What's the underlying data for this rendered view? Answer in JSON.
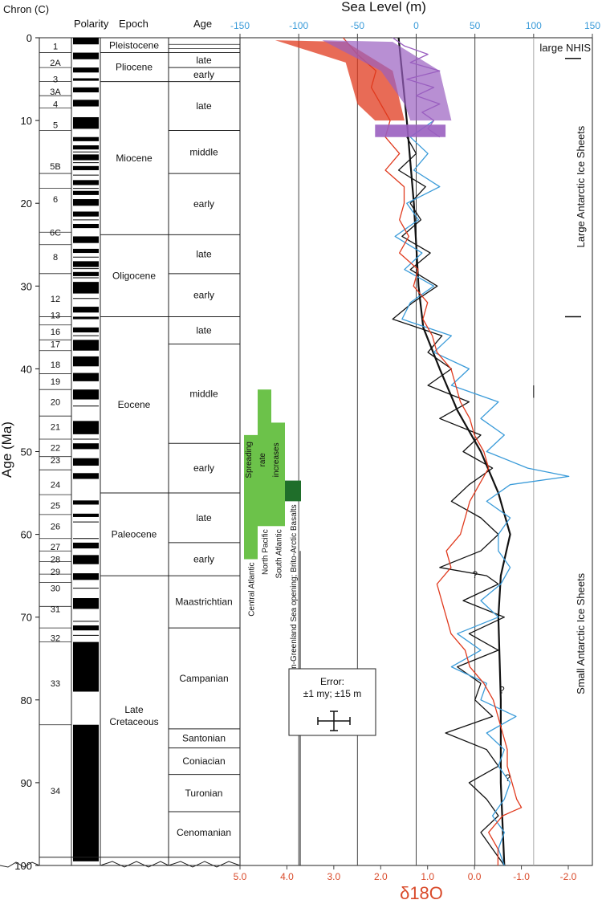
{
  "chart_data": {
    "type": "line",
    "title": "",
    "xlabel_top": "Sea Level (m)",
    "xlabel_bottom": "δ18O",
    "ylabel": "Age (Ma)",
    "y_ticks": [
      0,
      10,
      20,
      30,
      40,
      50,
      60,
      70,
      80,
      90,
      100
    ],
    "ylim": [
      0,
      100
    ],
    "sea_level_ticks": [
      -150,
      -100,
      -50,
      0,
      50,
      100,
      150
    ],
    "sea_level_lim": [
      -150,
      150
    ],
    "d18o_ticks": [
      "5.0",
      "4.0",
      "3.0",
      "2.0",
      "1.0",
      "0.0",
      "-1.0",
      "-2.0"
    ],
    "d18o_tick_values": [
      5.0,
      4.0,
      3.0,
      2.0,
      1.0,
      0.0,
      -1.0,
      -2.0
    ],
    "d18o_lim": [
      5.0,
      -2.0
    ],
    "grid": "vertical lines at -100, -50, 0, 50 and 100 m",
    "colors": {
      "sea_level_axis": "#3a9bd9",
      "d18o_axis": "#d94a2a",
      "black_curve": "#111111",
      "blue_curve": "#3a9bd9",
      "red_curve": "#e03a1e",
      "purple_curve": "#9a5fc0",
      "spreading_light": "#6cc24a",
      "spreading_dark": "#1f6e2a"
    },
    "series": [
      {
        "name": "",
        "color": "#111111",
        "axis": "sea_level",
        "style": "smoothed sea level",
        "points": [
          [
            0,
            -15
          ],
          [
            10,
            -8
          ],
          [
            20,
            -2
          ],
          [
            30,
            2
          ],
          [
            35,
            6
          ],
          [
            40,
            20
          ],
          [
            45,
            35
          ],
          [
            50,
            55
          ],
          [
            55,
            70
          ],
          [
            60,
            80
          ],
          [
            65,
            72
          ],
          [
            70,
            70
          ],
          [
            80,
            72
          ],
          [
            90,
            72
          ],
          [
            100,
            75
          ]
        ]
      },
      {
        "name": "",
        "color": "#111111",
        "axis": "sea_level",
        "style": "sea level",
        "points": [
          [
            12,
            -8
          ],
          [
            14,
            0
          ],
          [
            16,
            -15
          ],
          [
            18,
            8
          ],
          [
            20,
            -5
          ],
          [
            22,
            4
          ],
          [
            24,
            -12
          ],
          [
            26,
            12
          ],
          [
            28,
            -5
          ],
          [
            30,
            18
          ],
          [
            32,
            -3
          ],
          [
            34,
            -20
          ],
          [
            36,
            22
          ],
          [
            38,
            10
          ],
          [
            40,
            30
          ],
          [
            42,
            10
          ],
          [
            44,
            45
          ],
          [
            46,
            20
          ],
          [
            48,
            55
          ],
          [
            50,
            40
          ],
          [
            52,
            65
          ],
          [
            54,
            45
          ],
          [
            56,
            30
          ],
          [
            58,
            55
          ],
          [
            60,
            70
          ],
          [
            62,
            55
          ],
          [
            64,
            20
          ],
          [
            65,
            60
          ],
          [
            66,
            70
          ],
          [
            68,
            40
          ],
          [
            70,
            75
          ],
          [
            72,
            45
          ],
          [
            74,
            70
          ],
          [
            76,
            35
          ],
          [
            78,
            55
          ],
          [
            80,
            50
          ],
          [
            82,
            65
          ],
          [
            84,
            25
          ],
          [
            86,
            60
          ],
          [
            88,
            70
          ],
          [
            90,
            45
          ],
          [
            92,
            60
          ],
          [
            94,
            70
          ],
          [
            96,
            55
          ],
          [
            98,
            65
          ],
          [
            100,
            75
          ]
        ]
      },
      {
        "name": "",
        "color": "#3a9bd9",
        "axis": "sea_level",
        "style": "sea level",
        "points": [
          [
            10,
            15
          ],
          [
            12,
            -5
          ],
          [
            14,
            10
          ],
          [
            16,
            -2
          ],
          [
            18,
            20
          ],
          [
            20,
            -8
          ],
          [
            22,
            2
          ],
          [
            24,
            -18
          ],
          [
            26,
            5
          ],
          [
            28,
            -10
          ],
          [
            30,
            15
          ],
          [
            32,
            -5
          ],
          [
            34,
            -12
          ],
          [
            36,
            30
          ],
          [
            38,
            15
          ],
          [
            40,
            45
          ],
          [
            42,
            30
          ],
          [
            44,
            70
          ],
          [
            46,
            55
          ],
          [
            48,
            75
          ],
          [
            50,
            60
          ],
          [
            52,
            95
          ],
          [
            53,
            130
          ],
          [
            54,
            80
          ],
          [
            56,
            60
          ],
          [
            58,
            80
          ],
          [
            60,
            70
          ],
          [
            62,
            70
          ],
          [
            64,
            80
          ],
          [
            66,
            72
          ],
          [
            68,
            55
          ],
          [
            70,
            70
          ],
          [
            72,
            35
          ],
          [
            74,
            55
          ],
          [
            76,
            30
          ],
          [
            78,
            60
          ],
          [
            80,
            55
          ],
          [
            82,
            85
          ],
          [
            84,
            60
          ],
          [
            86,
            75
          ],
          [
            88,
            70
          ],
          [
            90,
            80
          ],
          [
            92,
            75
          ],
          [
            94,
            65
          ],
          [
            96,
            75
          ],
          [
            98,
            70
          ],
          [
            100,
            75
          ]
        ]
      },
      {
        "name": "",
        "color": "#e03a1e",
        "axis": "d18o",
        "style": "oxygen isotope",
        "points": [
          [
            0,
            2.8
          ],
          [
            2,
            2.5
          ],
          [
            4,
            2.1
          ],
          [
            6,
            2.2
          ],
          [
            8,
            2.0
          ],
          [
            10,
            1.8
          ],
          [
            12,
            1.9
          ],
          [
            14,
            1.6
          ],
          [
            16,
            1.9
          ],
          [
            18,
            1.5
          ],
          [
            20,
            1.5
          ],
          [
            22,
            1.6
          ],
          [
            24,
            1.4
          ],
          [
            26,
            1.6
          ],
          [
            28,
            1.2
          ],
          [
            30,
            1.3
          ],
          [
            32,
            1.0
          ],
          [
            34,
            1.1
          ],
          [
            36,
            0.9
          ],
          [
            38,
            0.8
          ],
          [
            40,
            0.5
          ],
          [
            42,
            0.4
          ],
          [
            44,
            0.3
          ],
          [
            46,
            0.1
          ],
          [
            48,
            0.0
          ],
          [
            50,
            -0.2
          ],
          [
            52,
            -0.3
          ],
          [
            54,
            -0.1
          ],
          [
            56,
            0.1
          ],
          [
            58,
            0.2
          ],
          [
            60,
            0.3
          ],
          [
            62,
            0.6
          ],
          [
            64,
            0.5
          ],
          [
            66,
            0.8
          ],
          [
            68,
            0.7
          ],
          [
            70,
            0.6
          ],
          [
            72,
            0.5
          ],
          [
            74,
            0.2
          ],
          [
            76,
            0.1
          ],
          [
            78,
            -0.2
          ],
          [
            80,
            -0.4
          ],
          [
            82,
            -0.5
          ],
          [
            84,
            -0.6
          ],
          [
            86,
            -0.7
          ],
          [
            88,
            -0.7
          ],
          [
            90,
            -0.8
          ],
          [
            92,
            -0.9
          ],
          [
            93,
            -1.0
          ],
          [
            94,
            -0.6
          ],
          [
            96,
            -0.3
          ],
          [
            98,
            -0.5
          ],
          [
            100,
            -0.5
          ]
        ]
      },
      {
        "name": "",
        "color": "#9a5fc0",
        "axis": "sea_level",
        "style": "sea level",
        "points": [
          [
            0,
            -20
          ],
          [
            1,
            -10
          ],
          [
            2,
            10
          ],
          [
            3,
            -5
          ],
          [
            4,
            20
          ],
          [
            5,
            -8
          ],
          [
            6,
            15
          ],
          [
            7,
            0
          ],
          [
            8,
            20
          ],
          [
            9,
            5
          ],
          [
            10,
            15
          ],
          [
            11,
            10
          ],
          [
            12,
            20
          ]
        ]
      }
    ],
    "annotations": {
      "large_nhis": "large NHIS",
      "large_antarctic": "Large Antarctic Ice Sheets",
      "small_antarctic": "Small Antarctic Ice Sheets",
      "error_line1": "Error:",
      "error_line2": "±1 my; ±15 m",
      "question_mark": "?"
    },
    "spreading": {
      "bar_label_1": "Spreading",
      "bar_label_2": "rate",
      "bar_label_3": "increases",
      "basins": [
        {
          "label": "Central Atlantic",
          "start": 48,
          "end": 63
        },
        {
          "label": "North Pacific",
          "start": 42.5,
          "end": 59
        },
        {
          "label": "South Atlantic",
          "start": 46.5,
          "end": 59
        },
        {
          "label": "Norwegian-Greenland Sea opening; Brito-Arctic Basalts",
          "start": 53.5,
          "end": 56
        }
      ]
    }
  },
  "timescale": {
    "headers": {
      "chron": "Chron (C)",
      "polarity": "Polarity",
      "epoch": "Epoch",
      "age": "Age"
    },
    "chrons": [
      {
        "label": "1",
        "age": 1
      },
      {
        "label": "2A",
        "age": 3
      },
      {
        "label": "3",
        "age": 5
      },
      {
        "label": "3A",
        "age": 6.5
      },
      {
        "label": "4",
        "age": 8
      },
      {
        "label": "5",
        "age": 10.5
      },
      {
        "label": "5B",
        "age": 15.5
      },
      {
        "label": "6",
        "age": 19.5
      },
      {
        "label": "6C",
        "age": 23.5
      },
      {
        "label": "8",
        "age": 26.5
      },
      {
        "label": "12",
        "age": 31.5
      },
      {
        "label": "13",
        "age": 33.5
      },
      {
        "label": "16",
        "age": 35.5
      },
      {
        "label": "17",
        "age": 37
      },
      {
        "label": "18",
        "age": 39.5
      },
      {
        "label": "19",
        "age": 41.5
      },
      {
        "label": "20",
        "age": 44
      },
      {
        "label": "21",
        "age": 47
      },
      {
        "label": "22",
        "age": 49.5
      },
      {
        "label": "23",
        "age": 51
      },
      {
        "label": "24",
        "age": 54
      },
      {
        "label": "25",
        "age": 56.5
      },
      {
        "label": "26",
        "age": 59
      },
      {
        "label": "27",
        "age": 61.5
      },
      {
        "label": "28",
        "age": 63
      },
      {
        "label": "29",
        "age": 64.5
      },
      {
        "label": "30",
        "age": 66.5
      },
      {
        "label": "31",
        "age": 69
      },
      {
        "label": "32",
        "age": 72.5
      },
      {
        "label": "33",
        "age": 78
      },
      {
        "label": "34",
        "age": 91
      }
    ],
    "epochs": [
      {
        "label": "Pleistocene",
        "top": 0,
        "bottom": 1.8
      },
      {
        "label": "Pliocene",
        "top": 1.8,
        "bottom": 5.3
      },
      {
        "label": "Miocene",
        "top": 5.3,
        "bottom": 23.8
      },
      {
        "label": "Oligocene",
        "top": 23.8,
        "bottom": 33.7
      },
      {
        "label": "Eocene",
        "top": 33.7,
        "bottom": 55
      },
      {
        "label": "Paleocene",
        "top": 55,
        "bottom": 65
      },
      {
        "label": "Late Cretaceous",
        "label2": "Cretaceous",
        "top": 65,
        "bottom": 98.5
      }
    ],
    "ages": [
      {
        "label": "",
        "top": 0,
        "bottom": 1.8
      },
      {
        "label": "late",
        "top": 1.8,
        "bottom": 3.6
      },
      {
        "label": "early",
        "top": 3.6,
        "bottom": 5.3
      },
      {
        "label": "late",
        "top": 5.3,
        "bottom": 11.2
      },
      {
        "label": "middle",
        "top": 11.2,
        "bottom": 16.4
      },
      {
        "label": "early",
        "top": 16.4,
        "bottom": 23.8
      },
      {
        "label": "late",
        "top": 23.8,
        "bottom": 28.5
      },
      {
        "label": "early",
        "top": 28.5,
        "bottom": 33.7
      },
      {
        "label": "late",
        "top": 33.7,
        "bottom": 37
      },
      {
        "label": "middle",
        "top": 37,
        "bottom": 49
      },
      {
        "label": "early",
        "top": 49,
        "bottom": 55
      },
      {
        "label": "late",
        "top": 55,
        "bottom": 61
      },
      {
        "label": "early",
        "top": 61,
        "bottom": 65
      },
      {
        "label": "Maastrichtian",
        "top": 65,
        "bottom": 71.3
      },
      {
        "label": "Campanian",
        "top": 71.3,
        "bottom": 83.5
      },
      {
        "label": "Santonian",
        "top": 83.5,
        "bottom": 85.8
      },
      {
        "label": "Coniacian",
        "top": 85.8,
        "bottom": 89
      },
      {
        "label": "Turonian",
        "top": 89,
        "bottom": 93.5
      },
      {
        "label": "Cenomanian",
        "top": 93.5,
        "bottom": 98.5
      }
    ],
    "polarity_normal": [
      [
        0,
        0.8
      ],
      [
        1.8,
        2.6
      ],
      [
        3.6,
        4.2
      ],
      [
        4.9,
        5.2
      ],
      [
        6.0,
        6.6
      ],
      [
        7.5,
        8.3
      ],
      [
        9.6,
        11.0
      ],
      [
        12.0,
        12.5
      ],
      [
        13.0,
        13.5
      ],
      [
        14.1,
        14.8
      ],
      [
        15.5,
        16.0
      ],
      [
        17.2,
        17.8
      ],
      [
        18.5,
        19.0
      ],
      [
        19.5,
        20.3
      ],
      [
        21.0,
        21.6
      ],
      [
        22.5,
        23.0
      ],
      [
        24.0,
        24.8
      ],
      [
        25.5,
        26.0
      ],
      [
        27.0,
        27.7
      ],
      [
        28.3,
        28.8
      ],
      [
        29.5,
        30.9
      ],
      [
        32.5,
        33.2
      ],
      [
        33.7,
        34.0
      ],
      [
        35.0,
        35.6
      ],
      [
        36.5,
        37.8
      ],
      [
        38.5,
        39.7
      ],
      [
        40.5,
        41.5
      ],
      [
        42.5,
        43.7
      ],
      [
        46.3,
        47.9
      ],
      [
        49.0,
        49.7
      ],
      [
        50.8,
        51.7
      ],
      [
        52.6,
        53.3
      ],
      [
        55.9,
        56.4
      ],
      [
        57.5,
        57.9
      ],
      [
        61.0,
        61.7
      ],
      [
        62.5,
        63.6
      ],
      [
        64.7,
        65.5
      ],
      [
        67.7,
        69.0
      ],
      [
        71.0,
        71.6
      ],
      [
        73.0,
        79.0
      ],
      [
        83.0,
        99.5
      ]
    ],
    "polarity_extra_ticks": [
      12.3,
      13.8,
      14.3,
      15.1,
      15.9,
      16.6,
      17.5,
      18.2,
      22.0,
      24.3,
      26.5,
      27.9,
      29.0,
      31.5,
      36.0,
      44.5,
      48.5,
      51.0,
      58.5,
      60.5,
      66.5,
      70.5,
      72.2
    ]
  }
}
